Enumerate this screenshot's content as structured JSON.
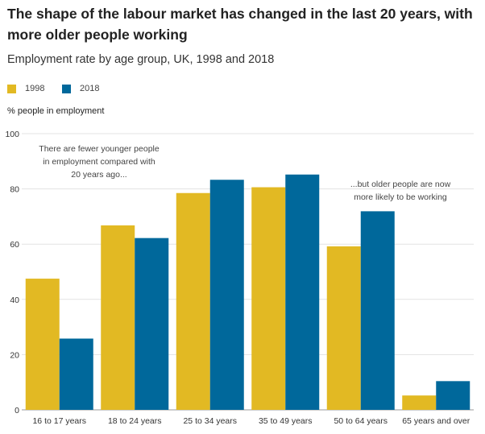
{
  "title": "The shape of the labour market has changed in the last 20 years, with more older people working",
  "subtitle": "Employment rate by age group, UK, 1998 and 2018",
  "legend": [
    {
      "label": "1998",
      "color": "#e2b923"
    },
    {
      "label": "2018",
      "color": "#00689b"
    }
  ],
  "chart_data": {
    "type": "bar",
    "title": "The shape of the labour market has changed in the last 20 years, with more older people working",
    "subtitle": "Employment rate by age group, UK, 1998 and 2018",
    "xlabel": "",
    "ylabel": "% people in employment",
    "ylim": [
      0,
      100
    ],
    "yticks": [
      0,
      20,
      40,
      60,
      80,
      100
    ],
    "grid": true,
    "legend_position": "top-left",
    "categories": [
      "16 to 17 years",
      "18 to 24 years",
      "25 to 34 years",
      "35 to 49 years",
      "50 to 64 years",
      "65 years and over"
    ],
    "series": [
      {
        "name": "1998",
        "color": "#e2b923",
        "values": [
          47.5,
          66.8,
          78.5,
          80.6,
          59.2,
          5.2
        ]
      },
      {
        "name": "2018",
        "color": "#00689b",
        "values": [
          25.8,
          62.2,
          83.3,
          85.2,
          71.9,
          10.4
        ]
      }
    ],
    "annotations": [
      {
        "lines": [
          "There are fewer younger people",
          "in employment compared with",
          "20 years ago..."
        ]
      },
      {
        "lines": [
          "...but older people are now",
          "more likely to be working"
        ]
      }
    ]
  }
}
